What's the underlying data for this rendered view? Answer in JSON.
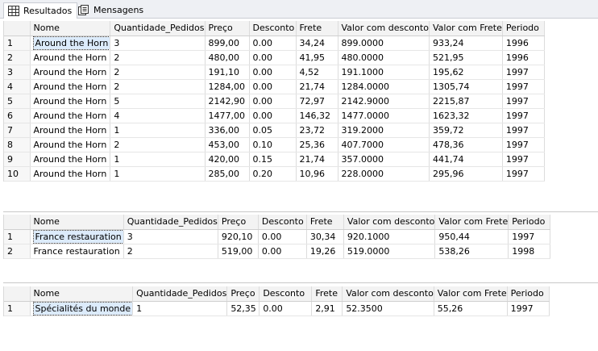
{
  "tabs": [
    {
      "label": "Resultados",
      "icon": "grid-icon"
    },
    {
      "label": "Mensagens",
      "icon": "messages-icon"
    }
  ],
  "grids": [
    {
      "headers": [
        "",
        "Nome",
        "Quantidade_Pedidos",
        "Preço",
        "Desconto",
        "Frete",
        "Valor com desconto",
        "Valor com Frete",
        "Periodo"
      ],
      "rows": [
        [
          "1",
          "Around the Horn",
          "3",
          "899,00",
          "0.00",
          "34,24",
          "899.0000",
          "933,24",
          "1996"
        ],
        [
          "2",
          "Around the Horn",
          "2",
          "480,00",
          "0.00",
          "41,95",
          "480.0000",
          "521,95",
          "1996"
        ],
        [
          "3",
          "Around the Horn",
          "2",
          "191,10",
          "0.00",
          "4,52",
          "191.1000",
          "195,62",
          "1997"
        ],
        [
          "4",
          "Around the Horn",
          "2",
          "1284,00",
          "0.00",
          "21,74",
          "1284.0000",
          "1305,74",
          "1997"
        ],
        [
          "5",
          "Around the Horn",
          "5",
          "2142,90",
          "0.00",
          "72,97",
          "2142.9000",
          "2215,87",
          "1997"
        ],
        [
          "6",
          "Around the Horn",
          "4",
          "1477,00",
          "0.00",
          "146,32",
          "1477.0000",
          "1623,32",
          "1997"
        ],
        [
          "7",
          "Around the Horn",
          "1",
          "336,00",
          "0.05",
          "23,72",
          "319.2000",
          "359,72",
          "1997"
        ],
        [
          "8",
          "Around the Horn",
          "2",
          "453,00",
          "0.10",
          "25,36",
          "407.7000",
          "478,36",
          "1997"
        ],
        [
          "9",
          "Around the Horn",
          "1",
          "420,00",
          "0.15",
          "21,74",
          "357.0000",
          "441,74",
          "1997"
        ],
        [
          "10",
          "Around the Horn",
          "1",
          "285,00",
          "0.20",
          "10,96",
          "228.0000",
          "295,96",
          "1997"
        ]
      ]
    },
    {
      "headers": [
        "",
        "Nome",
        "Quantidade_Pedidos",
        "Preço",
        "Desconto",
        "Frete",
        "Valor com desconto",
        "Valor com Frete",
        "Periodo"
      ],
      "rows": [
        [
          "1",
          "France restauration",
          "3",
          "920,10",
          "0.00",
          "30,34",
          "920.1000",
          "950,44",
          "1997"
        ],
        [
          "2",
          "France restauration",
          "2",
          "519,00",
          "0.00",
          "19,26",
          "519.0000",
          "538,26",
          "1998"
        ]
      ]
    },
    {
      "headers": [
        "",
        "Nome",
        "Quantidade_Pedidos",
        "Preço",
        "Desconto",
        "Frete",
        "Valor com desconto",
        "Valor com Frete",
        "Periodo"
      ],
      "rows": [
        [
          "1",
          "Spécialités du monde",
          "1",
          "52,35",
          "0.00",
          "2,91",
          "52.3500",
          "55,26",
          "1997"
        ]
      ]
    }
  ]
}
